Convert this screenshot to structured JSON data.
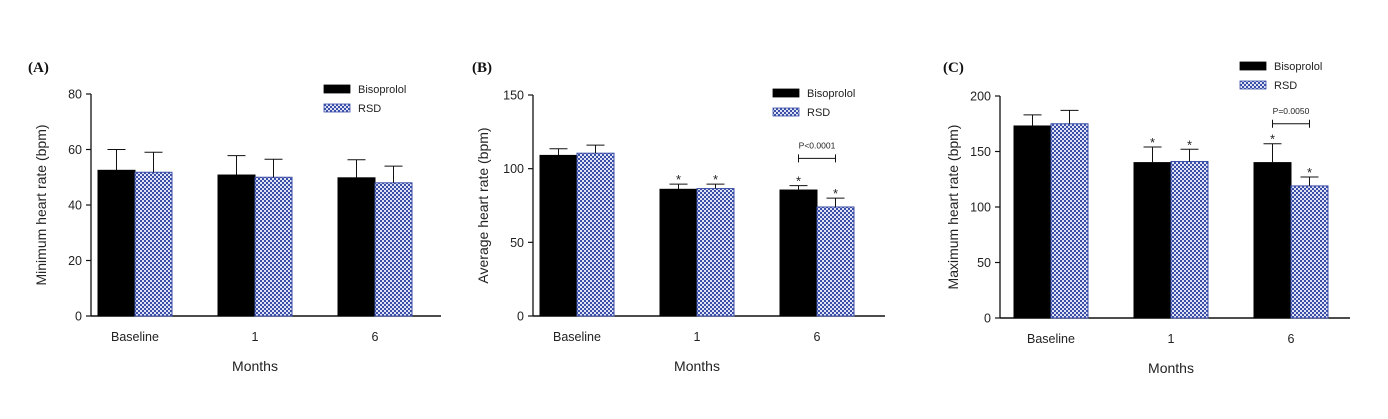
{
  "colors": {
    "bisoprolol": "#000000",
    "rsd": "#3c4fa8",
    "rsd_bg": "#dfe3f3"
  },
  "chart_data": [
    {
      "type": "bar",
      "panel_label": "(A)",
      "xlabel": "Months",
      "ylabel": "Minimum heart rate  (bpm)",
      "ylim": [
        0,
        80
      ],
      "yticks": [
        0,
        20,
        40,
        60,
        80
      ],
      "categories": [
        "Baseline",
        "1",
        "6"
      ],
      "legend_position": "top-right",
      "series": [
        {
          "name": "Bisoprolol",
          "values": [
            52.5,
            50.8,
            49.8
          ],
          "errors": [
            7.5,
            7.0,
            6.5
          ]
        },
        {
          "name": "RSD",
          "values": [
            51.8,
            50.0,
            48.0
          ],
          "errors": [
            7.2,
            6.5,
            6.0
          ]
        }
      ],
      "annotations": []
    },
    {
      "type": "bar",
      "panel_label": "(B)",
      "xlabel": "Months",
      "ylabel": "Average heart rate (bpm)",
      "ylim": [
        0,
        150
      ],
      "yticks": [
        0,
        50,
        100,
        150
      ],
      "categories": [
        "Baseline",
        "1",
        "6"
      ],
      "legend_position": "top-right",
      "series": [
        {
          "name": "Bisoprolol",
          "values": [
            109,
            86,
            85.5
          ],
          "errors": [
            4.5,
            3.5,
            3.0
          ]
        },
        {
          "name": "RSD",
          "values": [
            110.5,
            86.5,
            74
          ],
          "errors": [
            5.5,
            3.0,
            6.0
          ]
        }
      ],
      "annotations": [
        {
          "category": "1",
          "series": "Bisoprolol",
          "text": "*"
        },
        {
          "category": "1",
          "series": "RSD",
          "text": "*"
        },
        {
          "category": "6",
          "series": "Bisoprolol",
          "text": "*"
        },
        {
          "category": "6",
          "series": "RSD",
          "text": "*"
        }
      ],
      "comparison": {
        "category": "6",
        "text": "P<0.0001",
        "y": 107
      }
    },
    {
      "type": "bar",
      "panel_label": "(C)",
      "xlabel": "Months",
      "ylabel": "Maximum heart rate (bpm)",
      "ylim": [
        0,
        200
      ],
      "yticks": [
        0,
        50,
        100,
        150,
        200
      ],
      "categories": [
        "Baseline",
        "1",
        "6"
      ],
      "legend_position": "top-right",
      "series": [
        {
          "name": "Bisoprolol",
          "values": [
            173,
            140,
            140
          ],
          "errors": [
            10,
            14,
            17
          ]
        },
        {
          "name": "RSD",
          "values": [
            175,
            141,
            119
          ],
          "errors": [
            12,
            11,
            8
          ]
        }
      ],
      "annotations": [
        {
          "category": "1",
          "series": "Bisoprolol",
          "text": "*"
        },
        {
          "category": "1",
          "series": "RSD",
          "text": "*"
        },
        {
          "category": "6",
          "series": "Bisoprolol",
          "text": "*"
        },
        {
          "category": "6",
          "series": "RSD",
          "text": "*"
        }
      ],
      "comparison": {
        "category": "6",
        "text": "P=0.0050",
        "y": 175
      }
    }
  ]
}
